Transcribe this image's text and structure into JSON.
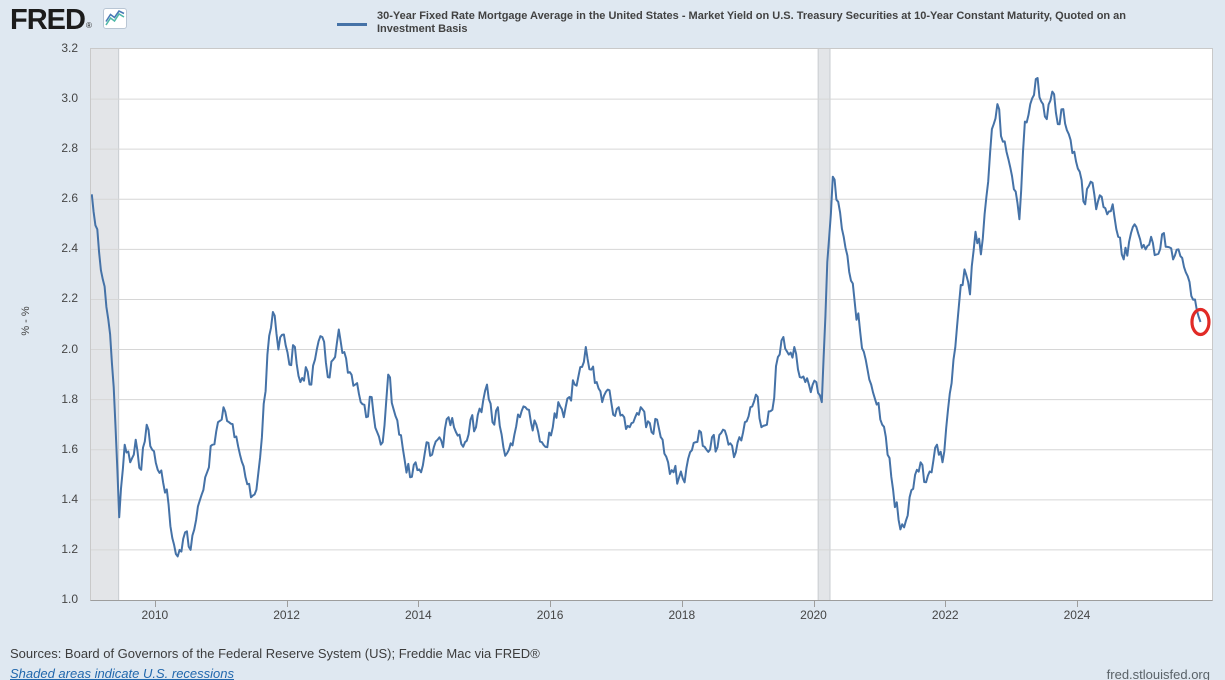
{
  "header": {
    "logo_text": "FRED",
    "logo_registered": "®",
    "logo_icon": "line-chart-icon",
    "series_title": "30-Year Fixed Rate Mortgage Average in the United States - Market Yield on U.S. Treasury Securities at 10-Year Constant Maturity, Quoted on an Investment Basis"
  },
  "footer": {
    "sources": "Sources: Board of Governors of the Federal Reserve System (US); Freddie Mac via FRED®",
    "recession_note": "Shaded areas indicate U.S. recessions",
    "site": "fred.stlouisfed.org"
  },
  "colors": {
    "page_background": "#dfe8f1",
    "plot_background": "#ffffff",
    "series_line": "#4572a7",
    "gridline": "#d6d6d6",
    "recession_band": "#e3e5e8",
    "annotation_red": "#e12a26",
    "link_blue": "#2268ad",
    "text_dark": "#424242"
  },
  "chart_data": {
    "type": "line",
    "title": "30-Year Fixed Rate Mortgage Average in the United States - Market Yield on U.S. Treasury Securities at 10-Year Constant Maturity, Quoted on an Investment Basis",
    "xlabel": "",
    "ylabel": "% - %",
    "x_domain": [
      2009.03,
      2026.05
    ],
    "ylim": [
      1.0,
      3.2
    ],
    "x_tick_years": [
      2010,
      2012,
      2014,
      2016,
      2018,
      2020,
      2022,
      2024
    ],
    "y_tick_values": [
      3.2,
      3.0,
      2.8,
      2.6,
      2.4,
      2.2,
      2.0,
      1.8,
      1.6,
      1.4,
      1.2,
      1.0
    ],
    "y_gridlines": [
      3.0,
      2.8,
      2.6,
      2.4,
      2.2,
      2.0,
      1.8,
      1.6,
      1.4,
      1.2
    ],
    "grid": "horizontal-only",
    "legend_position": "top",
    "recessions": [
      {
        "start": 2009.0,
        "end": 2009.45
      },
      {
        "start": 2020.07,
        "end": 2020.25
      }
    ],
    "annotation": {
      "shape": "red-circle-outline",
      "x": 2025.875,
      "y": 2.11
    },
    "series": [
      {
        "name": "30-Year Fixed Rate Mortgage Average in the United States - Market Yield on U.S. Treasury Securities at 10-Year Constant Maturity, Quoted on an Investment Basis",
        "color": "#4572a7",
        "x_start": 2009.042,
        "x_step": 0.0833333,
        "x_end": 2025.875,
        "values": [
          2.62,
          2.48,
          2.28,
          2.12,
          1.85,
          1.33,
          1.62,
          1.55,
          1.64,
          1.52,
          1.7,
          1.6,
          1.52,
          1.47,
          1.38,
          1.22,
          1.2,
          1.27,
          1.2,
          1.32,
          1.42,
          1.51,
          1.62,
          1.71,
          1.77,
          1.71,
          1.65,
          1.58,
          1.49,
          1.41,
          1.44,
          1.65,
          1.98,
          2.15,
          2.0,
          2.06,
          1.94,
          2.01,
          1.87,
          1.93,
          1.86,
          2.0,
          2.05,
          1.89,
          1.96,
          2.08,
          1.99,
          1.91,
          1.86,
          1.79,
          1.73,
          1.81,
          1.67,
          1.63,
          1.9,
          1.76,
          1.66,
          1.56,
          1.49,
          1.55,
          1.51,
          1.63,
          1.58,
          1.64,
          1.61,
          1.73,
          1.69,
          1.66,
          1.63,
          1.72,
          1.69,
          1.75,
          1.86,
          1.71,
          1.77,
          1.61,
          1.6,
          1.66,
          1.73,
          1.77,
          1.71,
          1.7,
          1.63,
          1.61,
          1.69,
          1.79,
          1.73,
          1.81,
          1.86,
          1.93,
          2.01,
          1.92,
          1.87,
          1.79,
          1.84,
          1.74,
          1.77,
          1.73,
          1.69,
          1.73,
          1.77,
          1.69,
          1.67,
          1.72,
          1.64,
          1.55,
          1.51,
          1.49,
          1.47,
          1.59,
          1.63,
          1.67,
          1.6,
          1.65,
          1.61,
          1.68,
          1.62,
          1.57,
          1.65,
          1.71,
          1.77,
          1.82,
          1.69,
          1.7,
          1.76,
          1.97,
          2.05,
          1.98,
          2.01,
          1.89,
          1.87,
          1.83,
          1.87,
          1.79,
          2.35,
          2.69,
          2.59,
          2.45,
          2.31,
          2.19,
          2.07,
          1.96,
          1.86,
          1.78,
          1.7,
          1.58,
          1.44,
          1.32,
          1.29,
          1.41,
          1.5,
          1.55,
          1.47,
          1.51,
          1.62,
          1.55,
          1.76,
          1.96,
          2.18,
          2.32,
          2.22,
          2.47,
          2.38,
          2.61,
          2.88,
          2.98,
          2.83,
          2.76,
          2.64,
          2.52,
          2.91,
          2.98,
          3.08,
          2.99,
          2.92,
          3.03,
          2.9,
          2.96,
          2.86,
          2.79,
          2.71,
          2.58,
          2.67,
          2.56,
          2.61,
          2.54,
          2.58,
          2.45,
          2.36,
          2.43,
          2.5,
          2.44,
          2.4,
          2.45,
          2.38,
          2.46,
          2.41,
          2.36,
          2.4,
          2.33,
          2.27,
          2.2,
          2.11
        ]
      }
    ]
  }
}
